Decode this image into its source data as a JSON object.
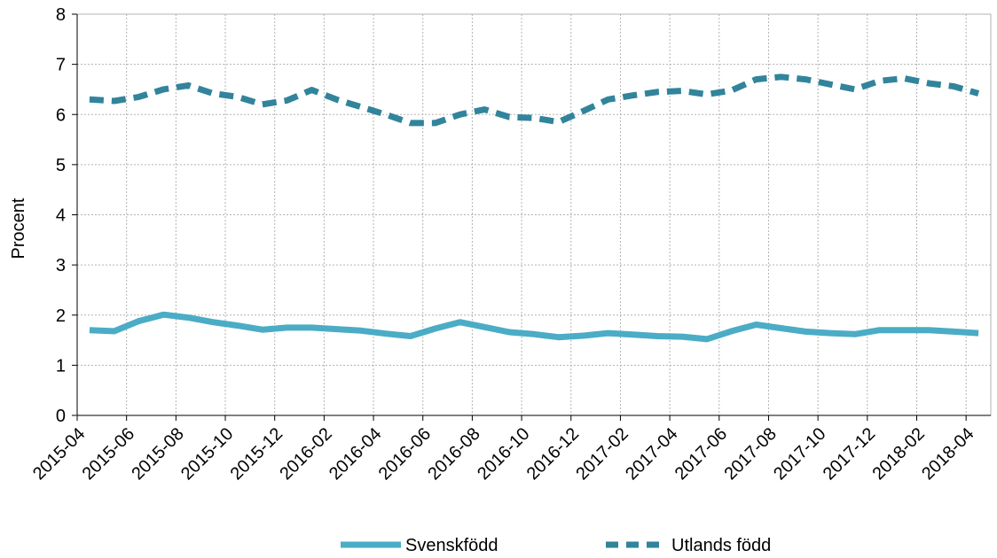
{
  "chart_data": {
    "type": "line",
    "title": "",
    "xlabel": "",
    "ylabel": "Procent",
    "ylim": [
      0,
      8
    ],
    "yticks": [
      0,
      1,
      2,
      3,
      4,
      5,
      6,
      7,
      8
    ],
    "grid": true,
    "legend_position": "bottom",
    "x": [
      "2015-04",
      "2015-05",
      "2015-06",
      "2015-07",
      "2015-08",
      "2015-09",
      "2015-10",
      "2015-11",
      "2015-12",
      "2016-01",
      "2016-02",
      "2016-03",
      "2016-04",
      "2016-05",
      "2016-06",
      "2016-07",
      "2016-08",
      "2016-09",
      "2016-10",
      "2016-11",
      "2016-12",
      "2017-01",
      "2017-02",
      "2017-03",
      "2017-04",
      "2017-05",
      "2017-06",
      "2017-07",
      "2017-08",
      "2017-09",
      "2017-10",
      "2017-11",
      "2017-12",
      "2018-01",
      "2018-02",
      "2018-03",
      "2018-04"
    ],
    "xtick_labels": [
      "2015-04",
      "2015-06",
      "2015-08",
      "2015-10",
      "2015-12",
      "2016-02",
      "2016-04",
      "2016-06",
      "2016-08",
      "2016-10",
      "2016-12",
      "2017-02",
      "2017-04",
      "2017-06",
      "2017-08",
      "2017-10",
      "2017-12",
      "2018-02",
      "2018-04"
    ],
    "series": [
      {
        "name": "Svenskfödd",
        "color": "#4bacc6",
        "style": "solid",
        "values": [
          1.7,
          1.68,
          1.88,
          2.01,
          1.95,
          1.86,
          1.79,
          1.71,
          1.75,
          1.75,
          1.72,
          1.69,
          1.63,
          1.58,
          1.73,
          1.86,
          1.76,
          1.66,
          1.62,
          1.56,
          1.59,
          1.64,
          1.61,
          1.58,
          1.57,
          1.52,
          1.68,
          1.81,
          1.74,
          1.67,
          1.64,
          1.62,
          1.7,
          1.7,
          1.7,
          1.67,
          1.64
        ]
      },
      {
        "name": "Utlands född",
        "color": "#31849b",
        "style": "dashed",
        "values": [
          6.3,
          6.27,
          6.35,
          6.5,
          6.58,
          6.42,
          6.35,
          6.2,
          6.28,
          6.49,
          6.3,
          6.15,
          6.0,
          5.83,
          5.83,
          6.0,
          6.1,
          5.95,
          5.93,
          5.85,
          6.07,
          6.3,
          6.38,
          6.45,
          6.47,
          6.4,
          6.48,
          6.7,
          6.75,
          6.7,
          6.6,
          6.5,
          6.67,
          6.72,
          6.62,
          6.56,
          6.42
        ]
      }
    ]
  }
}
